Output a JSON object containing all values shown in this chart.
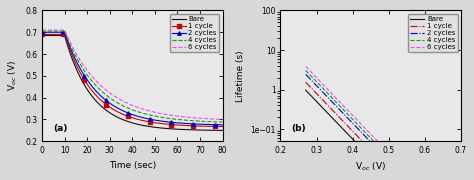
{
  "fig_width": 4.74,
  "fig_height": 1.8,
  "dpi": 100,
  "bg_color": "#000000",
  "plot_bg": "#000000",
  "panel_a": {
    "xlabel": "Time (sec)",
    "ylabel": "V$_{oc}$ (V)",
    "label": "(a)",
    "xlim": [
      0,
      80
    ],
    "ylim": [
      0.2,
      0.8
    ],
    "yticks": [
      0.2,
      0.3,
      0.4,
      0.5,
      0.6,
      0.7,
      0.8
    ],
    "xticks": [
      0,
      10,
      20,
      30,
      40,
      50,
      60,
      70,
      80
    ],
    "series": [
      {
        "label": "Bare",
        "color": "#000000",
        "ls": "-",
        "marker": null,
        "voc_init": 0.685,
        "voc_end": 0.248,
        "tau": 12.0
      },
      {
        "label": "1 cycle",
        "color": "#cc0000",
        "ls": "-",
        "marker": "s",
        "voc_init": 0.69,
        "voc_end": 0.265,
        "tau": 13.0
      },
      {
        "label": "2 cycles",
        "color": "#0000cc",
        "ls": "-",
        "marker": "^",
        "voc_init": 0.7,
        "voc_end": 0.272,
        "tau": 14.0
      },
      {
        "label": "4 cycles",
        "color": "#00aa00",
        "ls": "--",
        "marker": null,
        "voc_init": 0.705,
        "voc_end": 0.283,
        "tau": 15.5
      },
      {
        "label": "6 cycles",
        "color": "#ff44ff",
        "ls": "--",
        "marker": null,
        "voc_init": 0.71,
        "voc_end": 0.293,
        "tau": 17.0
      }
    ]
  },
  "panel_b": {
    "xlabel": "V$_{oc}$ (V)",
    "ylabel": "Lifetime (s)",
    "label": "(b)",
    "xlim": [
      0.2,
      0.7
    ],
    "ylim_log": [
      0.05,
      100
    ],
    "xticks": [
      0.2,
      0.3,
      0.4,
      0.5,
      0.6,
      0.7
    ],
    "series": [
      {
        "label": "Bare",
        "color": "#000000",
        "ls": "-",
        "slope": -9.5,
        "log_intercept": 2.55
      },
      {
        "label": "1 cycle",
        "color": "#cc0000",
        "ls": "-.",
        "slope": -9.5,
        "log_intercept": 2.75
      },
      {
        "label": "2 cycles",
        "color": "#0000cc",
        "ls": "-.",
        "slope": -9.5,
        "log_intercept": 2.95
      },
      {
        "label": "4 cycles",
        "color": "#00aa00",
        "ls": "--",
        "slope": -9.5,
        "log_intercept": 3.05
      },
      {
        "label": "6 cycles",
        "color": "#ff44ff",
        "ls": "--",
        "slope": -9.5,
        "log_intercept": 3.15
      }
    ]
  },
  "legend_fontsize": 5.0,
  "axis_fontsize": 6.5,
  "tick_fontsize": 5.5,
  "lw": 0.8
}
